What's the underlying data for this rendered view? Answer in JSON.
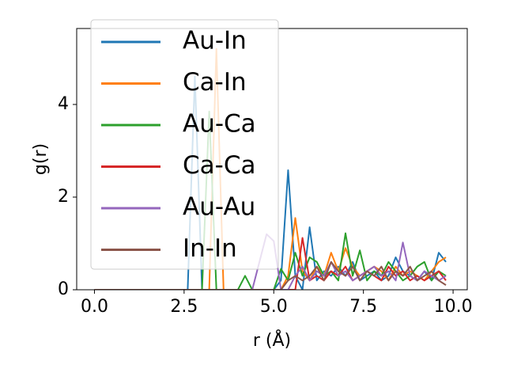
{
  "chart_data": {
    "type": "line",
    "xlabel": "r (Å)",
    "ylabel": "g(r)",
    "x": [
      0,
      2.6,
      2.8,
      3.0,
      3.2,
      3.4,
      3.6,
      3.8,
      4.0,
      4.2,
      4.4,
      4.6,
      4.8,
      5.0,
      5.2,
      5.4,
      5.6,
      5.8,
      6.0,
      6.2,
      6.4,
      6.6,
      6.8,
      7.0,
      7.2,
      7.4,
      7.6,
      7.8,
      8.0,
      8.2,
      8.4,
      8.6,
      8.8,
      9.0,
      9.2,
      9.4,
      9.6,
      9.8
    ],
    "series": [
      {
        "name": "Au-In",
        "color": "#1f77b4",
        "values": [
          0,
          0,
          4.6,
          0,
          0,
          0,
          0,
          0,
          0,
          0,
          0,
          0,
          0,
          0,
          0.2,
          2.58,
          0.3,
          0,
          1.35,
          0.2,
          0.4,
          0.3,
          0.5,
          0.3,
          0.6,
          0.2,
          0.3,
          0.4,
          0.2,
          0.3,
          0.7,
          0.4,
          0.3,
          0.2,
          0.4,
          0.2,
          0.8,
          0.6
        ]
      },
      {
        "name": "Ca-In",
        "color": "#ff7f0e",
        "values": [
          0,
          0,
          0,
          0,
          0,
          5.2,
          0,
          0,
          0,
          0,
          0,
          0,
          0,
          0,
          0,
          0.3,
          1.55,
          0.4,
          0.2,
          0.5,
          0.3,
          0.8,
          0.4,
          0.9,
          0.5,
          0.3,
          0.4,
          0.5,
          0.4,
          0.2,
          0.5,
          0.3,
          0.4,
          0.3,
          0.2,
          0.4,
          0.6,
          0.7
        ]
      },
      {
        "name": "Au-Ca",
        "color": "#2ca02c",
        "values": [
          0,
          0,
          0,
          0,
          3.85,
          0,
          0,
          0,
          0,
          0.3,
          0,
          0,
          0,
          0,
          0.45,
          0.2,
          0.8,
          0.3,
          0.7,
          0.6,
          0.3,
          0.4,
          0.2,
          1.22,
          0.3,
          0.85,
          0.2,
          0.4,
          0.3,
          0.6,
          0.4,
          0.2,
          0.3,
          0.5,
          0.6,
          0.2,
          0.4,
          0.3
        ]
      },
      {
        "name": "Ca-Ca",
        "color": "#d62728",
        "values": [
          0,
          0,
          0,
          0,
          0,
          0,
          0,
          0,
          0,
          0,
          0,
          0,
          0,
          0,
          0,
          0,
          0,
          1.12,
          0.2,
          0.3,
          0.2,
          0.4,
          0.3,
          0.5,
          0.2,
          0.3,
          0.4,
          0.3,
          0.2,
          0.5,
          0.3,
          0.4,
          0.2,
          0.3,
          0.2,
          0.3,
          0.4,
          0.2
        ]
      },
      {
        "name": "Au-Au",
        "color": "#9467bd",
        "values": [
          0,
          0,
          0,
          0,
          0,
          0,
          0,
          0,
          0,
          0,
          0,
          0.6,
          1.2,
          1.05,
          0,
          0,
          0.3,
          0.5,
          0.2,
          0.4,
          0.3,
          0.6,
          0.3,
          0.4,
          0.2,
          0.3,
          0.4,
          0.5,
          0.3,
          0.4,
          0.2,
          1.02,
          0.3,
          0.2,
          0.4,
          0.3,
          0.2,
          0.3
        ]
      },
      {
        "name": "In-In",
        "color": "#8c564b",
        "values": [
          0,
          0,
          0,
          0,
          0,
          0,
          0,
          0,
          0,
          0,
          0,
          0,
          0,
          0,
          0,
          0.2,
          0.3,
          0.2,
          0.3,
          0.5,
          0.2,
          0.6,
          0.4,
          0.3,
          0.5,
          0.2,
          0.4,
          0.3,
          0.5,
          0.2,
          0.4,
          0.3,
          0.5,
          0.2,
          0.3,
          0.4,
          0.2,
          0.1
        ]
      }
    ],
    "xlim": [
      -0.495,
      10.395
    ],
    "xticks": [
      {
        "value": 0,
        "label": "0.0"
      },
      {
        "value": 2.5,
        "label": "2.5"
      },
      {
        "value": 5,
        "label": "5.0"
      },
      {
        "value": 7.5,
        "label": "7.5"
      },
      {
        "value": 10,
        "label": "10.0"
      }
    ],
    "ylim": [
      0,
      5.64
    ],
    "yticks": [
      0,
      2,
      4
    ],
    "legend": "upper-left"
  }
}
